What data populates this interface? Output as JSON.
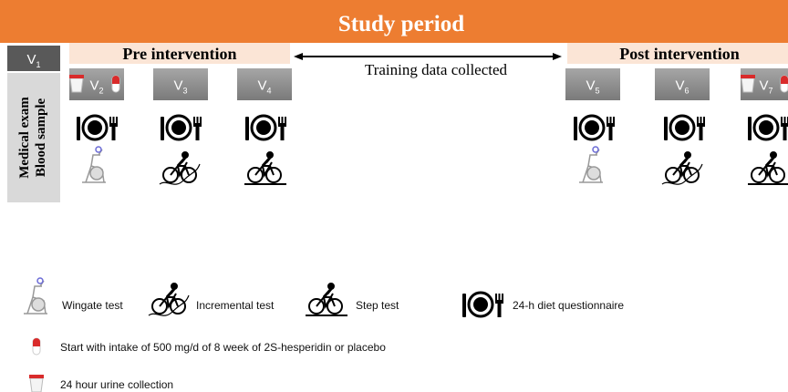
{
  "header": {
    "title": "Study period"
  },
  "phases": {
    "pre": "Pre intervention",
    "post": "Post intervention",
    "training": "Training data collected"
  },
  "side_label": {
    "line1": "Medical exam",
    "line2": "Blood sample"
  },
  "visits": [
    {
      "letter": "V",
      "sub": "1"
    },
    {
      "letter": "V",
      "sub": "2"
    },
    {
      "letter": "V",
      "sub": "3"
    },
    {
      "letter": "V",
      "sub": "4"
    },
    {
      "letter": "V",
      "sub": "5"
    },
    {
      "letter": "V",
      "sub": "6"
    },
    {
      "letter": "V",
      "sub": "7"
    }
  ],
  "legend": {
    "wingate": "Wingate test",
    "incremental": "Incremental test",
    "step": "Step test",
    "diet": "24-h diet questionnaire",
    "capsule": "Start with intake of 500 mg/d of 8 week of 2S-hesperidin or placebo",
    "urine": "24 hour urine collection"
  }
}
